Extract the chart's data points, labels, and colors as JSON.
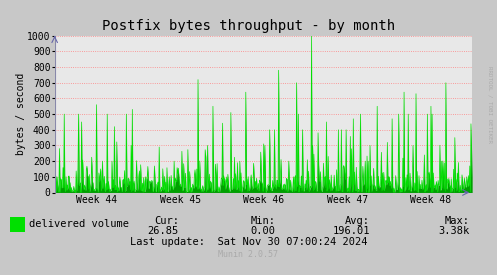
{
  "title": "Postfix bytes throughput - by month",
  "ylabel": "bytes / second",
  "background_color": "#c8c8c8",
  "plot_bg_color": "#e8e8e8",
  "grid_color": "#ff8080",
  "line_color": "#00e000",
  "fill_color": "#00a000",
  "ylim": [
    0,
    1000
  ],
  "yticks": [
    0,
    100,
    200,
    300,
    400,
    500,
    600,
    700,
    800,
    900,
    1000
  ],
  "week_labels": [
    "Week 44",
    "Week 45",
    "Week 46",
    "Week 47",
    "Week 48"
  ],
  "legend_label": "delivered volume",
  "cur_label": "Cur:",
  "cur_val": "26.85",
  "min_label": "Min:",
  "min_val": "0.00",
  "avg_label": "Avg:",
  "avg_val": "196.01",
  "max_label": "Max:",
  "max_val": "3.38k",
  "last_update": "Last update:  Sat Nov 30 07:00:24 2024",
  "munin_version": "Munin 2.0.57",
  "rrdtool_label": "RRDTOOL / TOBI OETIKER",
  "title_fontsize": 10,
  "axis_fontsize": 7,
  "legend_fontsize": 7.5,
  "stats_fontsize": 7.5
}
